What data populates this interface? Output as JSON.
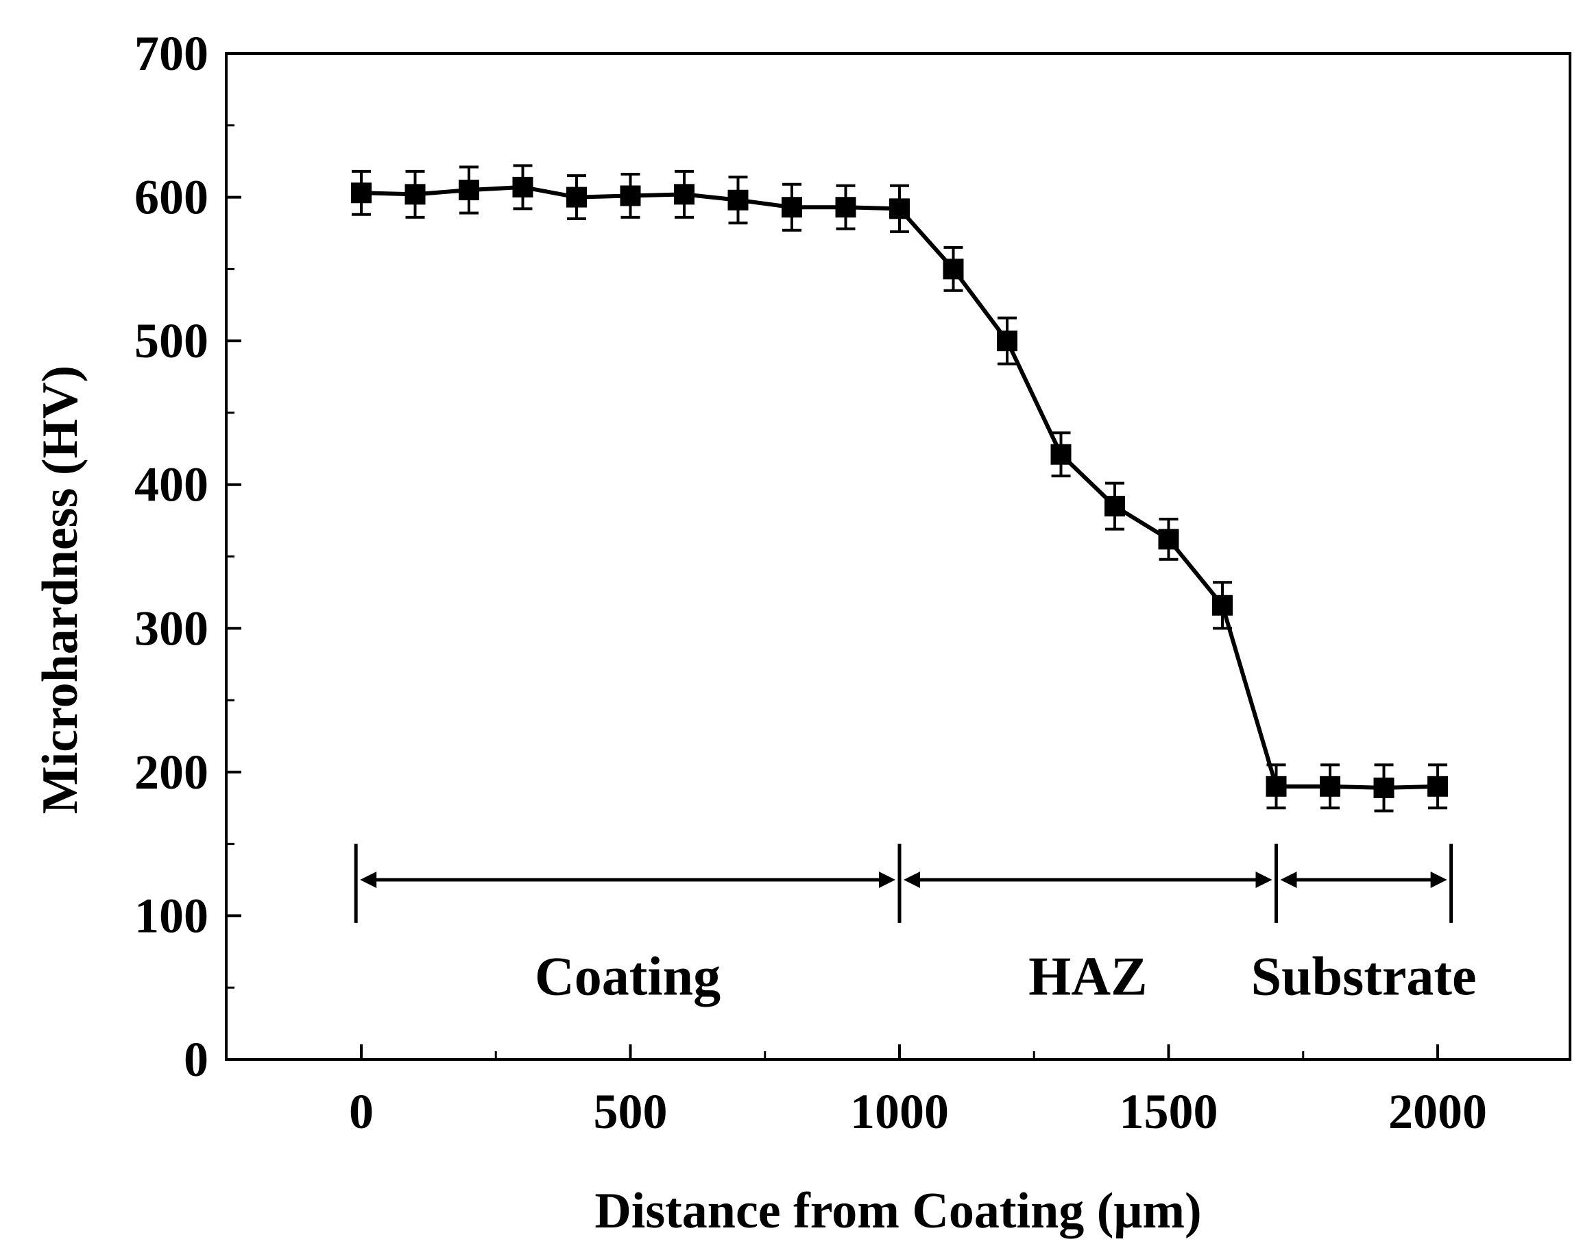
{
  "chart_data": {
    "type": "line",
    "title": "",
    "xlabel": "Distance from Coating (μm)",
    "ylabel": "Microhardness (HV)",
    "xlim": [
      -250,
      2250
    ],
    "ylim": [
      0,
      700
    ],
    "x_ticks": [
      0,
      500,
      1000,
      1500,
      2000
    ],
    "x_minor_ticks": [
      250,
      750,
      1250,
      1750
    ],
    "y_ticks": [
      0,
      100,
      200,
      300,
      400,
      500,
      600,
      700
    ],
    "y_minor_ticks": [
      50,
      150,
      250,
      350,
      450,
      550,
      650
    ],
    "grid": false,
    "series": [
      {
        "name": "Microhardness",
        "marker": "square",
        "x": [
          0,
          100,
          200,
          300,
          400,
          500,
          600,
          700,
          800,
          900,
          1000,
          1100,
          1200,
          1300,
          1400,
          1500,
          1600,
          1700,
          1800,
          1900,
          2000
        ],
        "values": [
          603,
          602,
          605,
          607,
          600,
          601,
          602,
          598,
          593,
          593,
          592,
          550,
          500,
          421,
          385,
          362,
          316,
          190,
          190,
          189,
          190
        ],
        "error": [
          15,
          16,
          16,
          15,
          15,
          15,
          16,
          16,
          16,
          15,
          16,
          15,
          16,
          15,
          16,
          14,
          16,
          15,
          15,
          16,
          15
        ]
      }
    ],
    "regions": [
      {
        "label": "Coating",
        "start": -10,
        "end": 1000
      },
      {
        "label": "HAZ",
        "start": 1000,
        "end": 1700
      },
      {
        "label": "Substrate",
        "start": 1700,
        "end": 2025
      }
    ]
  }
}
